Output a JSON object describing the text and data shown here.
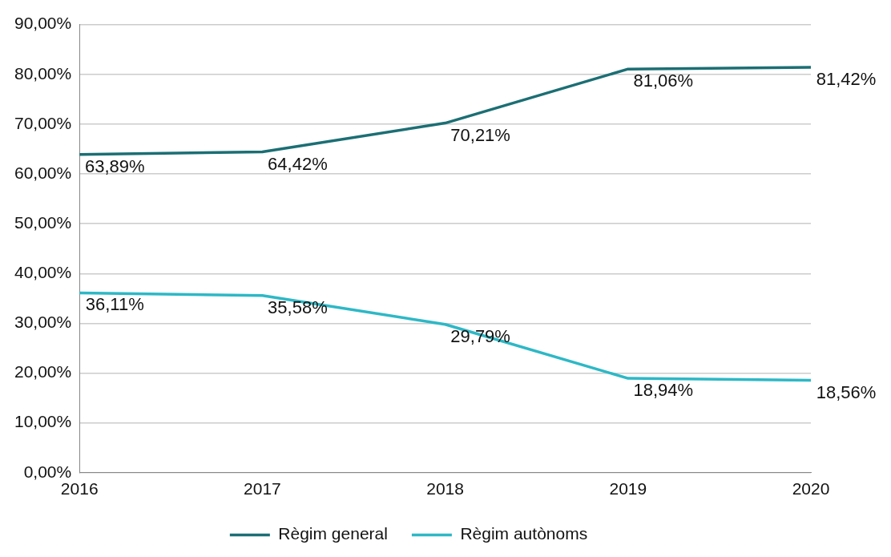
{
  "chart_data": {
    "type": "line",
    "categories": [
      "2016",
      "2017",
      "2018",
      "2019",
      "2020"
    ],
    "series": [
      {
        "name": "Règim general",
        "color": "#1b6f74",
        "values": [
          63.89,
          64.42,
          70.21,
          81.06,
          81.42
        ],
        "value_labels": [
          "63,89%",
          "64,42%",
          "70,21%",
          "81,06%",
          "81,42%"
        ]
      },
      {
        "name": "Règim autònoms",
        "color": "#2db8c6",
        "values": [
          36.11,
          35.58,
          29.79,
          18.94,
          18.56
        ],
        "value_labels": [
          "36,11%",
          "35,58%",
          "29,79%",
          "18,94%",
          "18,56%"
        ]
      }
    ],
    "ylim": [
      0,
      90
    ],
    "yticks": [
      {
        "value": 0,
        "label": "0,00%"
      },
      {
        "value": 10,
        "label": "10,00%"
      },
      {
        "value": 20,
        "label": "20,00%"
      },
      {
        "value": 30,
        "label": "30,00%"
      },
      {
        "value": 40,
        "label": "40,00%"
      },
      {
        "value": 50,
        "label": "50,00%"
      },
      {
        "value": 60,
        "label": "60,00%"
      },
      {
        "value": 70,
        "label": "70,00%"
      },
      {
        "value": 80,
        "label": "80,00%"
      },
      {
        "value": 90,
        "label": "90,00%"
      }
    ],
    "grid": "y",
    "legend": "bottom",
    "marker": "none",
    "line_style": "solid"
  }
}
